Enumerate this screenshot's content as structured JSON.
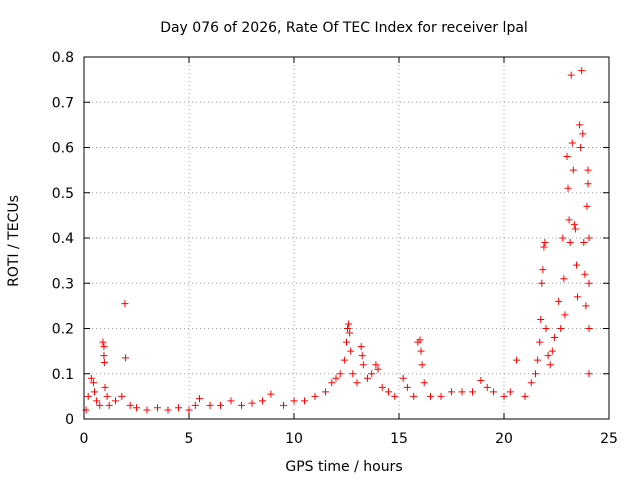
{
  "chart_data": {
    "type": "scatter",
    "title": "Day 076 of 2026, Rate Of TEC Index for receiver lpal",
    "xlabel": "GPS time / hours",
    "ylabel": "ROTI / TECUs",
    "xlim": [
      0,
      25
    ],
    "ylim": [
      0,
      0.8
    ],
    "x_ticks": [
      0,
      5,
      10,
      15,
      20,
      25
    ],
    "y_ticks": [
      0,
      0.1,
      0.2,
      0.3,
      0.4,
      0.5,
      0.6,
      0.7,
      0.8
    ],
    "x_tick_labels": [
      "0",
      "5",
      "10",
      "15",
      "20",
      "25"
    ],
    "y_tick_labels": [
      "0",
      "0.1",
      "0.2",
      "0.3",
      "0.4",
      "0.5",
      "0.6",
      "0.7",
      "0.8"
    ],
    "grid": true,
    "marker": "plus",
    "color": "#ff0000",
    "series": [
      {
        "points": [
          [
            0.1,
            0.02
          ],
          [
            0.2,
            0.05
          ],
          [
            0.35,
            0.09
          ],
          [
            0.45,
            0.08
          ],
          [
            0.5,
            0.06
          ],
          [
            0.6,
            0.04
          ],
          [
            0.75,
            0.03
          ],
          [
            0.9,
            0.17
          ],
          [
            0.95,
            0.16
          ],
          [
            0.95,
            0.14
          ],
          [
            0.97,
            0.125
          ],
          [
            1.0,
            0.07
          ],
          [
            1.1,
            0.05
          ],
          [
            1.2,
            0.03
          ],
          [
            1.5,
            0.04
          ],
          [
            1.8,
            0.05
          ],
          [
            1.95,
            0.255
          ],
          [
            1.98,
            0.135
          ],
          [
            2.2,
            0.03
          ],
          [
            2.5,
            0.025
          ],
          [
            3.0,
            0.02
          ],
          [
            3.5,
            0.025
          ],
          [
            4.0,
            0.02
          ],
          [
            4.5,
            0.025
          ],
          [
            5.0,
            0.02
          ],
          [
            5.3,
            0.03
          ],
          [
            5.5,
            0.045
          ],
          [
            6.0,
            0.03
          ],
          [
            6.5,
            0.03
          ],
          [
            7.0,
            0.04
          ],
          [
            7.5,
            0.03
          ],
          [
            8.0,
            0.035
          ],
          [
            8.5,
            0.04
          ],
          [
            8.9,
            0.055
          ],
          [
            9.5,
            0.03
          ],
          [
            10.0,
            0.04
          ],
          [
            10.5,
            0.04
          ],
          [
            11.0,
            0.05
          ],
          [
            11.5,
            0.06
          ],
          [
            11.8,
            0.08
          ],
          [
            12.0,
            0.09
          ],
          [
            12.2,
            0.1
          ],
          [
            12.4,
            0.13
          ],
          [
            12.5,
            0.17
          ],
          [
            12.55,
            0.2
          ],
          [
            12.6,
            0.21
          ],
          [
            12.65,
            0.19
          ],
          [
            12.7,
            0.15
          ],
          [
            12.8,
            0.1
          ],
          [
            13.0,
            0.08
          ],
          [
            13.2,
            0.16
          ],
          [
            13.25,
            0.14
          ],
          [
            13.3,
            0.12
          ],
          [
            13.5,
            0.09
          ],
          [
            13.7,
            0.1
          ],
          [
            13.9,
            0.12
          ],
          [
            14.0,
            0.11
          ],
          [
            14.2,
            0.07
          ],
          [
            14.5,
            0.06
          ],
          [
            14.8,
            0.05
          ],
          [
            15.2,
            0.09
          ],
          [
            15.4,
            0.07
          ],
          [
            15.7,
            0.05
          ],
          [
            15.9,
            0.17
          ],
          [
            16.0,
            0.175
          ],
          [
            16.05,
            0.15
          ],
          [
            16.1,
            0.12
          ],
          [
            16.2,
            0.08
          ],
          [
            16.5,
            0.05
          ],
          [
            17.0,
            0.05
          ],
          [
            17.5,
            0.06
          ],
          [
            18.0,
            0.06
          ],
          [
            18.5,
            0.06
          ],
          [
            18.9,
            0.085
          ],
          [
            19.2,
            0.07
          ],
          [
            19.5,
            0.06
          ],
          [
            20.0,
            0.05
          ],
          [
            20.3,
            0.06
          ],
          [
            20.6,
            0.13
          ],
          [
            21.0,
            0.05
          ],
          [
            21.3,
            0.08
          ],
          [
            21.5,
            0.1
          ],
          [
            21.6,
            0.13
          ],
          [
            21.7,
            0.17
          ],
          [
            21.75,
            0.22
          ],
          [
            21.8,
            0.3
          ],
          [
            21.85,
            0.33
          ],
          [
            21.9,
            0.38
          ],
          [
            21.95,
            0.39
          ],
          [
            22.0,
            0.2
          ],
          [
            22.1,
            0.14
          ],
          [
            22.2,
            0.12
          ],
          [
            22.3,
            0.15
          ],
          [
            22.4,
            0.18
          ],
          [
            22.6,
            0.26
          ],
          [
            22.7,
            0.2
          ],
          [
            22.8,
            0.4
          ],
          [
            22.85,
            0.31
          ],
          [
            22.9,
            0.23
          ],
          [
            23.0,
            0.58
          ],
          [
            23.05,
            0.51
          ],
          [
            23.1,
            0.44
          ],
          [
            23.15,
            0.39
          ],
          [
            23.2,
            0.76
          ],
          [
            23.25,
            0.61
          ],
          [
            23.3,
            0.55
          ],
          [
            23.35,
            0.43
          ],
          [
            23.4,
            0.42
          ],
          [
            23.45,
            0.34
          ],
          [
            23.5,
            0.27
          ],
          [
            23.6,
            0.65
          ],
          [
            23.65,
            0.6
          ],
          [
            23.7,
            0.77
          ],
          [
            23.75,
            0.63
          ],
          [
            23.8,
            0.39
          ],
          [
            23.85,
            0.32
          ],
          [
            23.9,
            0.25
          ],
          [
            23.95,
            0.47
          ],
          [
            24.0,
            0.55
          ],
          [
            24.0,
            0.52
          ],
          [
            24.05,
            0.4
          ],
          [
            24.05,
            0.3
          ],
          [
            24.05,
            0.2
          ],
          [
            24.05,
            0.1
          ]
        ]
      }
    ]
  }
}
